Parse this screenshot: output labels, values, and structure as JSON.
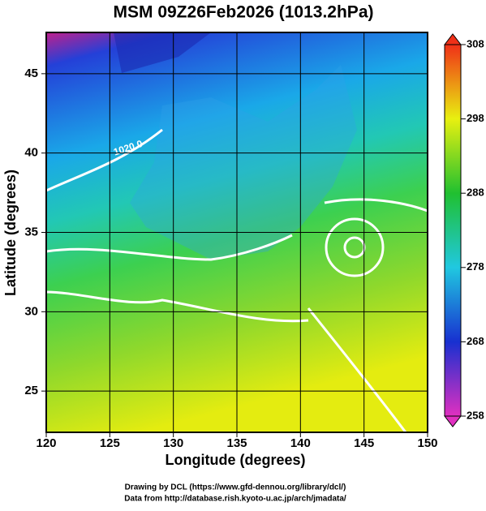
{
  "map": {
    "title": "MSM 09Z26Feb2026 (1013.2hPa)",
    "x_label": "Longitude (degrees)",
    "y_label": "Latitude  (degrees)",
    "xlim": [
      120,
      150
    ],
    "ylim": [
      22.4,
      47.6
    ],
    "xticks": [
      120,
      125,
      130,
      135,
      140,
      145,
      150
    ],
    "yticks": [
      25,
      30,
      35,
      40,
      45
    ],
    "grid": true,
    "contour_label": "1020.0",
    "colorbar": {
      "lim": [
        258,
        308
      ],
      "ticks": [
        258,
        268,
        278,
        288,
        298,
        308
      ]
    },
    "credits": [
      "Drawing by DCL (https://www.gfd-dennou.org/library/dcl/)",
      "Data from http://database.rish.kyoto-u.ac.jp/arch/jmadata/"
    ]
  }
}
